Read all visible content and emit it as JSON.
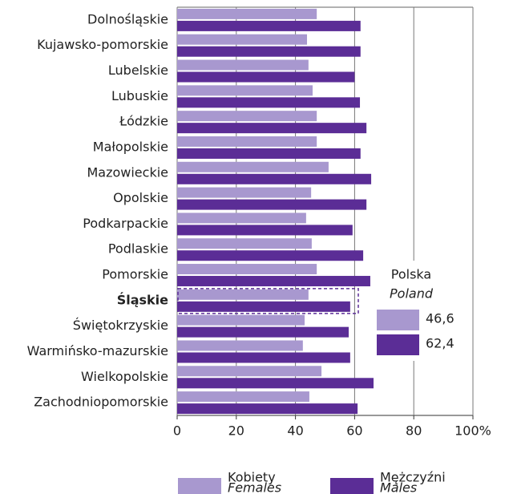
{
  "chart_data": {
    "type": "bar",
    "orientation": "horizontal",
    "categories": [
      "Dolnośląskie",
      "Kujawsko-pomorskie",
      "Lubelskie",
      "Lubuskie",
      "Łódzkie",
      "Małopolskie",
      "Mazowieckie",
      "Opolskie",
      "Podkarpackie",
      "Podlaskie",
      "Pomorskie",
      "Śląskie",
      "Świętokrzyskie",
      "Warmińsko-mazurskie",
      "Wielkopolskie",
      "Zachodniopomorskie"
    ],
    "series": [
      {
        "name": "Kobiety",
        "name_en": "Females",
        "color": "#a898cf",
        "values": [
          47.2,
          43.9,
          44.4,
          45.8,
          47.2,
          47.2,
          51.2,
          45.3,
          43.6,
          45.5,
          47.2,
          44.4,
          43.1,
          42.5,
          48.8,
          44.7
        ]
      },
      {
        "name": "Mężczyźni",
        "name_en": "Males",
        "color": "#5b2d96",
        "values": [
          62,
          62,
          60,
          61.8,
          64,
          62,
          65.6,
          64,
          59.3,
          62.9,
          65.3,
          58.5,
          58,
          58.5,
          66.4,
          61
        ]
      }
    ],
    "xlim": [
      0,
      100
    ],
    "xticks": [
      0,
      20,
      40,
      60,
      80,
      {
        "value": 100,
        "label": "100%"
      }
    ],
    "grid": true,
    "highlight": 11,
    "reference": {
      "title": "Polska",
      "subtitle": "Poland",
      "values": [
        46.6,
        62.4
      ],
      "value_labels": [
        "46,6",
        "62,4"
      ]
    }
  }
}
